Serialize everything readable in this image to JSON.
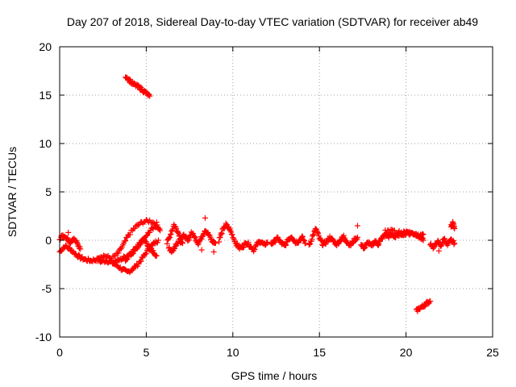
{
  "chart_data": {
    "type": "scatter",
    "title": "Day 207 of 2018, Sidereal Day-to-day VTEC variation (SDTVAR) for receiver ab49",
    "xlabel": "GPS time / hours",
    "ylabel": "SDTVAR / TECUs",
    "xlim": [
      0,
      25
    ],
    "ylim": [
      -10,
      20
    ],
    "xticks": [
      0,
      5,
      10,
      15,
      20,
      25
    ],
    "yticks": [
      -10,
      -5,
      0,
      5,
      10,
      15,
      20
    ],
    "grid": true,
    "marker": "+",
    "color": "#ff0000",
    "series": [
      {
        "name": "SDTVAR",
        "trace_segments": [
          [
            [
              0.0,
              -1.2
            ],
            [
              0.3,
              -0.6
            ],
            [
              0.6,
              -0.9
            ],
            [
              0.9,
              -1.4
            ],
            [
              1.2,
              -1.8
            ],
            [
              1.5,
              -2.0
            ],
            [
              1.8,
              -2.1
            ],
            [
              2.1,
              -2.0
            ],
            [
              2.4,
              -2.2
            ],
            [
              2.7,
              -2.1
            ],
            [
              3.0,
              -2.3
            ],
            [
              3.3,
              -2.6
            ],
            [
              3.6,
              -3.0
            ],
            [
              3.9,
              -3.3
            ],
            [
              4.2,
              -3.0
            ],
            [
              4.5,
              -2.5
            ],
            [
              4.8,
              -1.8
            ],
            [
              5.1,
              -1.0
            ],
            [
              5.4,
              -0.4
            ],
            [
              5.7,
              0.0
            ]
          ],
          [
            [
              0.0,
              0.2
            ],
            [
              0.2,
              0.5
            ],
            [
              0.4,
              0.3
            ],
            [
              0.6,
              -0.2
            ],
            [
              0.8,
              0.2
            ],
            [
              1.0,
              -0.3
            ],
            [
              1.2,
              -0.9
            ]
          ],
          [
            [
              2.2,
              -1.7
            ],
            [
              2.6,
              -1.6
            ],
            [
              3.0,
              -1.9
            ],
            [
              3.4,
              -1.3
            ],
            [
              3.7,
              -0.4
            ],
            [
              4.0,
              0.6
            ],
            [
              4.4,
              1.4
            ],
            [
              4.8,
              1.9
            ],
            [
              5.2,
              2.0
            ],
            [
              5.6,
              1.7
            ],
            [
              5.8,
              1.0
            ]
          ],
          [
            [
              3.2,
              -2.2
            ],
            [
              3.5,
              -2.0
            ],
            [
              3.8,
              -1.7
            ],
            [
              4.1,
              -1.3
            ],
            [
              4.4,
              -0.8
            ],
            [
              4.7,
              -0.2
            ],
            [
              5.0,
              0.5
            ],
            [
              5.3,
              1.1
            ],
            [
              5.6,
              1.4
            ]
          ],
          [
            [
              3.8,
              -2.0
            ],
            [
              4.1,
              -1.5
            ],
            [
              4.4,
              -1.0
            ],
            [
              4.6,
              -0.4
            ],
            [
              4.8,
              0.1
            ],
            [
              5.0,
              -0.2
            ],
            [
              5.2,
              -0.8
            ],
            [
              5.4,
              -1.2
            ],
            [
              5.6,
              -1.6
            ]
          ],
          [
            [
              6.2,
              -0.3
            ],
            [
              6.4,
              0.6
            ],
            [
              6.6,
              1.6
            ],
            [
              6.8,
              1.0
            ],
            [
              7.0,
              0.2
            ],
            [
              7.2,
              0.5
            ],
            [
              7.4,
              -0.1
            ],
            [
              7.6,
              0.8
            ],
            [
              7.8,
              0.3
            ],
            [
              8.0,
              -0.3
            ],
            [
              8.2,
              0.3
            ],
            [
              8.4,
              1.1
            ],
            [
              8.6,
              0.6
            ],
            [
              8.8,
              -0.1
            ],
            [
              9.0,
              -0.3
            ]
          ],
          [
            [
              6.3,
              -0.8
            ],
            [
              6.5,
              -1.2
            ],
            [
              6.7,
              -0.5
            ],
            [
              6.9,
              0.0
            ],
            [
              7.1,
              -0.3
            ]
          ],
          [
            [
              9.2,
              0.0
            ],
            [
              9.4,
              1.0
            ],
            [
              9.6,
              1.6
            ],
            [
              9.8,
              1.2
            ],
            [
              10.0,
              0.4
            ],
            [
              10.2,
              -0.4
            ],
            [
              10.4,
              -0.8
            ],
            [
              10.6,
              -0.6
            ],
            [
              10.8,
              -0.2
            ],
            [
              11.0,
              -0.6
            ],
            [
              11.2,
              -1.0
            ],
            [
              11.4,
              -0.4
            ],
            [
              11.6,
              -0.1
            ],
            [
              11.8,
              -0.5
            ],
            [
              12.0,
              -0.2
            ]
          ],
          [
            [
              12.2,
              -0.4
            ],
            [
              12.4,
              -0.1
            ],
            [
              12.6,
              0.2
            ],
            [
              12.8,
              -0.3
            ],
            [
              13.0,
              -0.6
            ],
            [
              13.2,
              0.1
            ],
            [
              13.4,
              0.4
            ],
            [
              13.6,
              -0.2
            ],
            [
              13.8,
              -0.1
            ],
            [
              14.0,
              0.3
            ],
            [
              14.2,
              -0.3
            ]
          ],
          [
            [
              14.4,
              -0.6
            ],
            [
              14.6,
              0.4
            ],
            [
              14.8,
              1.2
            ],
            [
              15.0,
              0.2
            ],
            [
              15.2,
              -0.4
            ],
            [
              15.4,
              -0.2
            ],
            [
              15.6,
              0.3
            ],
            [
              15.8,
              -0.1
            ],
            [
              16.0,
              -0.4
            ],
            [
              16.2,
              0.0
            ],
            [
              16.4,
              0.4
            ],
            [
              16.6,
              -0.2
            ],
            [
              16.8,
              -0.5
            ],
            [
              17.0,
              0.0
            ],
            [
              17.2,
              0.3
            ]
          ],
          [
            [
              17.4,
              -0.5
            ],
            [
              17.6,
              -0.8
            ],
            [
              17.8,
              -0.2
            ],
            [
              18.0,
              -0.6
            ],
            [
              18.2,
              -0.1
            ],
            [
              18.4,
              -0.4
            ],
            [
              18.6,
              0.2
            ],
            [
              18.8,
              0.6
            ],
            [
              19.0,
              0.4
            ],
            [
              19.2,
              0.6
            ],
            [
              19.4,
              0.3
            ],
            [
              19.6,
              0.8
            ],
            [
              19.8,
              0.7
            ],
            [
              20.0,
              0.9
            ],
            [
              20.2,
              0.8
            ],
            [
              20.4,
              0.7
            ],
            [
              20.6,
              0.6
            ],
            [
              20.8,
              0.3
            ],
            [
              21.0,
              0.0
            ]
          ],
          [
            [
              18.8,
              0.9
            ],
            [
              19.2,
              1.0
            ],
            [
              19.6,
              0.6
            ],
            [
              20.0,
              0.6
            ],
            [
              20.4,
              0.8
            ],
            [
              20.8,
              0.4
            ],
            [
              21.0,
              0.6
            ]
          ],
          [
            [
              21.4,
              -0.3
            ],
            [
              21.6,
              -0.8
            ],
            [
              21.8,
              -0.1
            ],
            [
              22.0,
              -0.6
            ],
            [
              22.2,
              0.2
            ],
            [
              22.4,
              -0.5
            ],
            [
              22.6,
              0.0
            ],
            [
              22.8,
              -0.3
            ]
          ],
          [
            [
              22.6,
              1.4
            ],
            [
              22.7,
              1.8
            ],
            [
              22.8,
              1.2
            ]
          ],
          [
            [
              3.8,
              17.0
            ],
            [
              4.0,
              16.6
            ],
            [
              4.2,
              16.2
            ],
            [
              4.4,
              16.0
            ],
            [
              4.6,
              15.8
            ],
            [
              4.8,
              15.5
            ],
            [
              5.0,
              15.2
            ],
            [
              5.2,
              14.9
            ]
          ],
          [
            [
              20.6,
              -7.3
            ],
            [
              20.8,
              -7.0
            ],
            [
              21.0,
              -6.8
            ],
            [
              21.2,
              -6.5
            ],
            [
              21.4,
              -6.3
            ]
          ]
        ],
        "isolated_points": [
          [
            8.4,
            2.3
          ],
          [
            8.2,
            -1.0
          ],
          [
            8.9,
            -1.2
          ],
          [
            17.2,
            1.5
          ],
          [
            0.5,
            0.8
          ],
          [
            21.9,
            -1.1
          ]
        ]
      }
    ]
  }
}
